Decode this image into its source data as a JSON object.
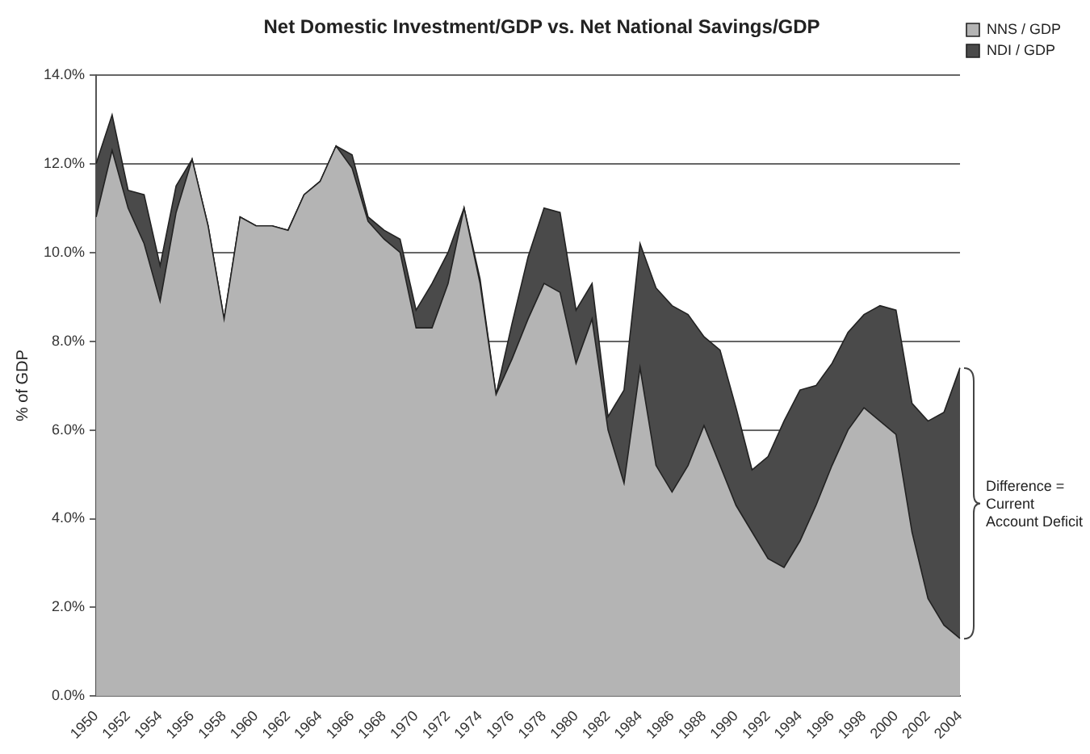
{
  "chart_data": {
    "type": "area",
    "title": "Net Domestic Investment/GDP vs. Net National Savings/GDP",
    "ylabel": "% of GDP",
    "categories": [
      "1950",
      null,
      "1952",
      null,
      "1954",
      null,
      "1956",
      null,
      "1958",
      null,
      "1960",
      null,
      "1962",
      null,
      "1964",
      null,
      "1966",
      null,
      "1968",
      null,
      "1970",
      null,
      "1972",
      null,
      "1974",
      null,
      "1976",
      null,
      "1978",
      null,
      "1980",
      null,
      "1982",
      null,
      "1984",
      null,
      "1986",
      null,
      "1988",
      null,
      "1990",
      null,
      "1992",
      null,
      "1994",
      null,
      "1996",
      null,
      "1998",
      null,
      "2000",
      null,
      "2002",
      null,
      "2004"
    ],
    "series": [
      {
        "name": "NDI / GDP",
        "color": "#4a4a4a",
        "values": [
          12.0,
          13.1,
          11.4,
          11.3,
          9.7,
          11.5,
          12.1,
          10.6,
          8.5,
          10.8,
          10.6,
          10.6,
          10.5,
          11.3,
          11.6,
          12.4,
          12.2,
          10.8,
          10.5,
          10.3,
          8.7,
          9.3,
          10.0,
          11.0,
          9.4,
          6.8,
          8.4,
          9.9,
          11.0,
          10.9,
          8.7,
          9.3,
          6.3,
          6.9,
          10.2,
          9.2,
          8.8,
          8.6,
          8.1,
          7.8,
          6.5,
          5.1,
          5.4,
          6.2,
          6.9,
          7.0,
          7.5,
          8.2,
          8.6,
          8.8,
          8.7,
          6.6,
          6.2,
          6.4,
          7.4
        ]
      },
      {
        "name": "NNS / GDP",
        "color": "#b4b4b4",
        "values": [
          10.8,
          12.3,
          11.0,
          10.2,
          8.9,
          10.9,
          12.1,
          10.6,
          8.5,
          10.8,
          10.6,
          10.6,
          10.5,
          11.3,
          11.6,
          12.4,
          11.9,
          10.7,
          10.3,
          10.0,
          8.3,
          8.3,
          9.3,
          11.0,
          9.3,
          6.8,
          7.6,
          8.5,
          9.3,
          9.1,
          7.5,
          8.5,
          6.0,
          4.8,
          7.4,
          5.2,
          4.6,
          5.2,
          6.1,
          5.2,
          4.3,
          3.7,
          3.1,
          2.9,
          3.5,
          4.3,
          5.2,
          6.0,
          6.5,
          6.2,
          5.9,
          3.7,
          2.2,
          1.6,
          1.3
        ]
      }
    ],
    "ylim": [
      0,
      14
    ],
    "yticks": [
      {
        "value": 0,
        "label": "0.0%"
      },
      {
        "value": 2,
        "label": "2.0%"
      },
      {
        "value": 4,
        "label": "4.0%"
      },
      {
        "value": 6,
        "label": "6.0%"
      },
      {
        "value": 8,
        "label": "8.0%"
      },
      {
        "value": 10,
        "label": "10.0%"
      },
      {
        "value": 12,
        "label": "12.0%"
      },
      {
        "value": 14,
        "label": "14.0%"
      }
    ],
    "grid": "y",
    "legend": "right",
    "annotations": [
      "Difference = Current Account Deficit"
    ]
  }
}
